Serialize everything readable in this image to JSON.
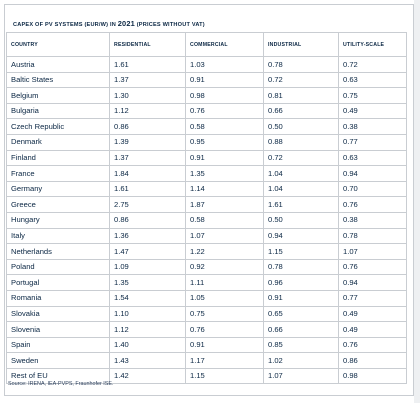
{
  "title": {
    "prefix": "CAPEX OF PV SYSTEMS (EUR/W) IN ",
    "year": "2021",
    "suffix": " (PRICES WITHOUT VAT)"
  },
  "columns": [
    "COUNTRY",
    "RESIDENTIAL",
    "COMMERCIAL",
    "INDUSTRIAL",
    "UTILITY-SCALE"
  ],
  "rows": [
    [
      "Austria",
      "1.61",
      "1.03",
      "0.78",
      "0.72"
    ],
    [
      "Baltic States",
      "1.37",
      "0.91",
      "0.72",
      "0.63"
    ],
    [
      "Belgium",
      "1.30",
      "0.98",
      "0.81",
      "0.75"
    ],
    [
      "Bulgaria",
      "1.12",
      "0.76",
      "0.66",
      "0.49"
    ],
    [
      "Czech Republic",
      "0.86",
      "0.58",
      "0.50",
      "0.38"
    ],
    [
      "Denmark",
      "1.39",
      "0.95",
      "0.88",
      "0.77"
    ],
    [
      "Finland",
      "1.37",
      "0.91",
      "0.72",
      "0.63"
    ],
    [
      "France",
      "1.84",
      "1.35",
      "1.04",
      "0.94"
    ],
    [
      "Germany",
      "1.61",
      "1.14",
      "1.04",
      "0.70"
    ],
    [
      "Greece",
      "2.75",
      "1.87",
      "1.61",
      "0.76"
    ],
    [
      "Hungary",
      "0.86",
      "0.58",
      "0.50",
      "0.38"
    ],
    [
      "Italy",
      "1.36",
      "1.07",
      "0.94",
      "0.78"
    ],
    [
      "Netherlands",
      "1.47",
      "1.22",
      "1.15",
      "1.07"
    ],
    [
      "Poland",
      "1.09",
      "0.92",
      "0.78",
      "0.76"
    ],
    [
      "Portugal",
      "1.35",
      "1.11",
      "0.96",
      "0.94"
    ],
    [
      "Romania",
      "1.54",
      "1.05",
      "0.91",
      "0.77"
    ],
    [
      "Slovakia",
      "1.10",
      "0.75",
      "0.65",
      "0.49"
    ],
    [
      "Slovenia",
      "1.12",
      "0.76",
      "0.66",
      "0.49"
    ],
    [
      "Spain",
      "1.40",
      "0.91",
      "0.85",
      "0.76"
    ],
    [
      "Sweden",
      "1.43",
      "1.17",
      "1.02",
      "0.86"
    ],
    [
      "Rest of EU",
      "1.42",
      "1.15",
      "1.07",
      "0.98"
    ]
  ],
  "source": "Source: IRENA, IEA-PVPS, Fraunhofer ISE.",
  "colors": {
    "text": "#0b2744",
    "border": "#c9cdd2",
    "background": "#ffffff"
  }
}
